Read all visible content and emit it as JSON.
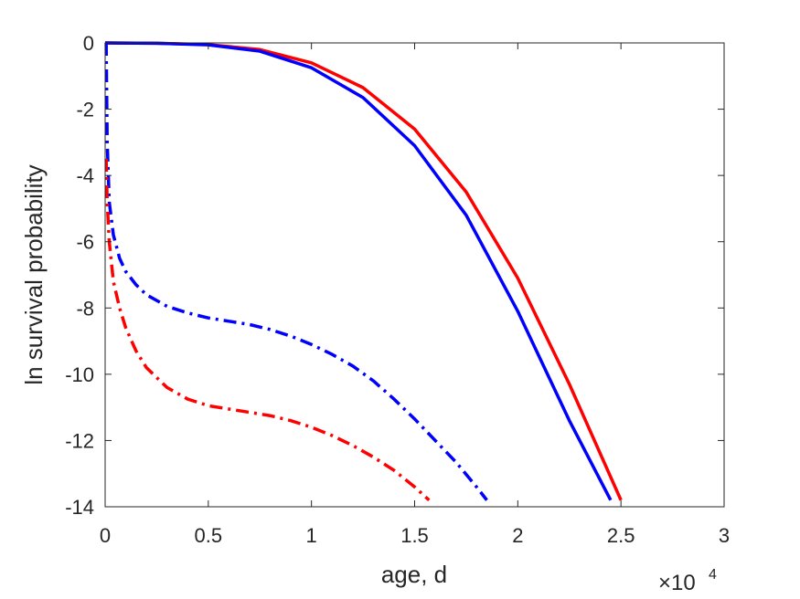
{
  "chart_data": {
    "type": "line",
    "title": "",
    "xlabel": "age, d",
    "ylabel": "ln survival probability",
    "x_exponent_label": {
      "base": "×10",
      "power": "4"
    },
    "xlim": [
      0,
      30000
    ],
    "ylim": [
      -14,
      0
    ],
    "x_ticks": [
      0,
      5000,
      10000,
      15000,
      20000,
      25000,
      30000
    ],
    "x_tick_labels": [
      "0",
      "0.5",
      "1",
      "1.5",
      "2",
      "2.5",
      "3"
    ],
    "y_ticks": [
      0,
      -2,
      -4,
      -6,
      -8,
      -10,
      -12,
      -14
    ],
    "y_tick_labels": [
      "0",
      "-2",
      "-4",
      "-6",
      "-8",
      "-10",
      "-12",
      "-14"
    ],
    "grid": false,
    "series": [
      {
        "color": "#ff0000",
        "style": "solid",
        "x": [
          0,
          2500,
          5000,
          7500,
          10000,
          12500,
          15000,
          17500,
          20000,
          22500,
          25000
        ],
        "y": [
          0,
          -0.01,
          -0.05,
          -0.2,
          -0.6,
          -1.35,
          -2.6,
          -4.5,
          -7.1,
          -10.3,
          -13.8
        ]
      },
      {
        "color": "#0000ff",
        "style": "solid",
        "x": [
          0,
          2500,
          5000,
          7500,
          10000,
          12500,
          15000,
          17500,
          20000,
          22500,
          24500
        ],
        "y": [
          0,
          -0.01,
          -0.06,
          -0.25,
          -0.75,
          -1.65,
          -3.1,
          -5.2,
          -8.1,
          -11.4,
          -13.8
        ]
      },
      {
        "color": "#0000ff",
        "style": "dashdot",
        "x": [
          50,
          100,
          200,
          400,
          700,
          1000,
          1500,
          2000,
          3000,
          4000,
          5000,
          6000,
          7000,
          8000,
          9000,
          10000,
          11000,
          12000,
          13000,
          14000,
          15000,
          16000,
          17000,
          18000,
          18500
        ],
        "y": [
          0,
          -3.0,
          -4.8,
          -5.8,
          -6.5,
          -6.9,
          -7.3,
          -7.6,
          -7.95,
          -8.15,
          -8.3,
          -8.4,
          -8.5,
          -8.65,
          -8.85,
          -9.1,
          -9.4,
          -9.75,
          -10.2,
          -10.75,
          -11.35,
          -12.0,
          -12.65,
          -13.4,
          -13.8
        ]
      },
      {
        "color": "#ff0000",
        "style": "dashdot",
        "x": [
          50,
          100,
          200,
          400,
          700,
          1000,
          1500,
          2000,
          3000,
          4000,
          5000,
          6000,
          7000,
          8000,
          9000,
          10000,
          11000,
          12000,
          13000,
          14000,
          15000,
          15700
        ],
        "y": [
          -3.5,
          -4.8,
          -6.0,
          -7.2,
          -8.0,
          -8.6,
          -9.3,
          -9.8,
          -10.4,
          -10.75,
          -10.95,
          -11.05,
          -11.15,
          -11.25,
          -11.4,
          -11.6,
          -11.85,
          -12.15,
          -12.5,
          -12.9,
          -13.4,
          -13.8
        ]
      }
    ]
  }
}
